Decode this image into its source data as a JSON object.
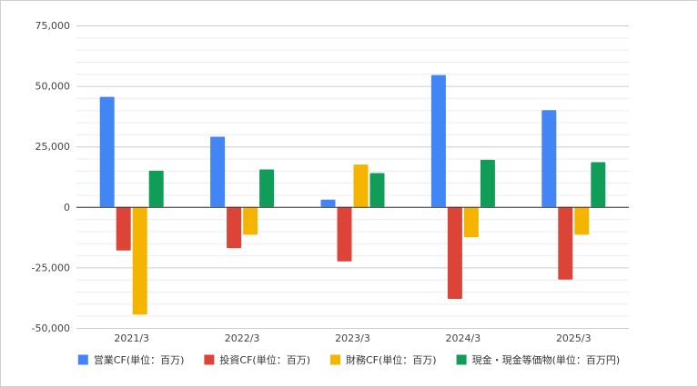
{
  "chart_data": {
    "type": "bar",
    "title": "",
    "xlabel": "",
    "ylabel": "",
    "categories": [
      "2021/3",
      "2022/3",
      "2023/3",
      "2024/3",
      "2025/3"
    ],
    "ylim": [
      -50000,
      75000
    ],
    "yticks": [
      75000,
      50000,
      25000,
      0,
      -25000,
      -50000
    ],
    "ytick_labels": [
      "75,000",
      "50,000",
      "25,000",
      "0",
      "-25,000",
      "-50,000"
    ],
    "minor_grid_step": 5000,
    "grid": true,
    "legend_position": "bottom",
    "series": [
      {
        "name": "営業CF(単位：百万)",
        "color": "#4285f4",
        "values": [
          45500,
          29000,
          3000,
          54500,
          40000
        ]
      },
      {
        "name": "投資CF(単位：百万)",
        "color": "#db4437",
        "values": [
          -18000,
          -17000,
          -22500,
          -38000,
          -30000
        ]
      },
      {
        "name": "財務CF(単位：百万)",
        "color": "#f4b400",
        "values": [
          -44500,
          -11500,
          17500,
          -12500,
          -11500
        ]
      },
      {
        "name": "現金・現金等価物(単位：百万円)",
        "color": "#0f9d58",
        "values": [
          15000,
          15500,
          14000,
          19500,
          18500
        ]
      }
    ]
  }
}
